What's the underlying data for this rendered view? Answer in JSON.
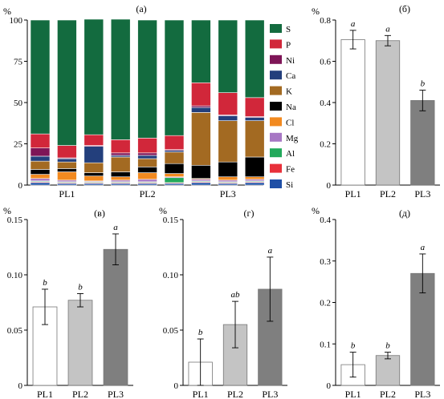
{
  "chart_data": [
    {
      "type": "bar",
      "panel": "(a)",
      "stacked": true,
      "ylabel": "%",
      "ylim": [
        0,
        100
      ],
      "yticks": [
        "0",
        "25",
        "50",
        "75",
        "100"
      ],
      "groups": [
        "PL1",
        "PL2",
        "PL3"
      ],
      "bars_per_group": 3,
      "legend": "right",
      "series": [
        {
          "name": "Si",
          "color": "#1f4fa6",
          "values": [
            1.5,
            1.0,
            1.0,
            1.0,
            1.0,
            1.0,
            1.5,
            1.0,
            1.5
          ]
        },
        {
          "name": "Fe",
          "color": "#e8303a",
          "values": [
            0.5,
            0.5,
            0.5,
            0.5,
            0.5,
            0.5,
            0.5,
            0.5,
            0.5
          ]
        },
        {
          "name": "Al",
          "color": "#22a95b",
          "values": [
            0.5,
            0.5,
            0.5,
            0.5,
            0.5,
            3.0,
            0.5,
            0.5,
            0.5
          ]
        },
        {
          "name": "Mg",
          "color": "#a777c4",
          "values": [
            1.5,
            1.0,
            0.5,
            1.0,
            1.5,
            0.5,
            1.0,
            1.0,
            1.0
          ]
        },
        {
          "name": "Cl",
          "color": "#f28a20",
          "values": [
            2.5,
            5.0,
            3.0,
            2.0,
            4.0,
            2.0,
            0.5,
            2.0,
            1.5
          ]
        },
        {
          "name": "Na",
          "color": "#000000",
          "values": [
            3.0,
            2.0,
            2.0,
            3.0,
            3.5,
            6.0,
            8.0,
            9.0,
            12.0
          ]
        },
        {
          "name": "K",
          "color": "#a36a22",
          "values": [
            5.0,
            4.0,
            6.0,
            9.0,
            5.0,
            7.0,
            32.0,
            25.0,
            22.0
          ]
        },
        {
          "name": "Ca",
          "color": "#233f7c",
          "values": [
            3.0,
            2.0,
            10.0,
            1.0,
            2.0,
            1.0,
            3.0,
            3.0,
            2.0
          ]
        },
        {
          "name": "Ni",
          "color": "#7e1557",
          "values": [
            5.0,
            0.5,
            0.5,
            1.5,
            1.5,
            0.5,
            1.0,
            0.5,
            0.5
          ]
        },
        {
          "name": "P",
          "color": "#d1273a",
          "values": [
            8.5,
            7.5,
            6.5,
            8.0,
            9.0,
            8.5,
            14.0,
            13.5,
            11.5
          ]
        },
        {
          "name": "S",
          "color": "#136b3f",
          "values": [
            69.0,
            76.0,
            70.0,
            73.0,
            71.5,
            70.0,
            38.0,
            44.0,
            47.0
          ]
        }
      ]
    },
    {
      "type": "bar",
      "panel": "(б)",
      "ylabel": "%",
      "ylim": [
        0,
        0.8
      ],
      "yticks": [
        "0",
        "0.2",
        "0.4",
        "0.6",
        "0.8"
      ],
      "categories": [
        "PL1",
        "PL2",
        "PL3"
      ],
      "values": [
        0.705,
        0.7,
        0.41
      ],
      "errors": [
        0.045,
        0.025,
        0.05
      ],
      "letters": [
        "a",
        "a",
        "b"
      ],
      "colors": [
        "#ffffff",
        "#c4c4c4",
        "#7f7f7f"
      ]
    },
    {
      "type": "bar",
      "panel": "(в)",
      "ylabel": "%",
      "ylim": [
        0,
        0.15
      ],
      "yticks": [
        "0",
        "0.05",
        "0.10",
        "0.15"
      ],
      "categories": [
        "PL1",
        "PL2",
        "PL3"
      ],
      "values": [
        0.071,
        0.077,
        0.123
      ],
      "errors": [
        0.016,
        0.006,
        0.014
      ],
      "letters": [
        "b",
        "b",
        "a"
      ],
      "colors": [
        "#ffffff",
        "#c4c4c4",
        "#7f7f7f"
      ]
    },
    {
      "type": "bar",
      "panel": "(г)",
      "ylabel": "%",
      "ylim": [
        0,
        0.15
      ],
      "yticks": [
        "0",
        "0.05",
        "0.10",
        "0.15"
      ],
      "categories": [
        "PL1",
        "PL2",
        "PL3"
      ],
      "values": [
        0.021,
        0.055,
        0.087
      ],
      "errors": [
        0.021,
        0.021,
        0.029
      ],
      "letters": [
        "b",
        "ab",
        "a"
      ],
      "colors": [
        "#ffffff",
        "#c4c4c4",
        "#7f7f7f"
      ]
    },
    {
      "type": "bar",
      "panel": "(д)",
      "ylabel": "%",
      "ylim": [
        0,
        0.4
      ],
      "yticks": [
        "0",
        "0.1",
        "0.2",
        "0.3",
        "0.4"
      ],
      "categories": [
        "PL1",
        "PL2",
        "PL3"
      ],
      "values": [
        0.05,
        0.072,
        0.27
      ],
      "errors": [
        0.03,
        0.008,
        0.047
      ],
      "letters": [
        "b",
        "b",
        "a"
      ],
      "colors": [
        "#ffffff",
        "#c4c4c4",
        "#7f7f7f"
      ]
    }
  ]
}
